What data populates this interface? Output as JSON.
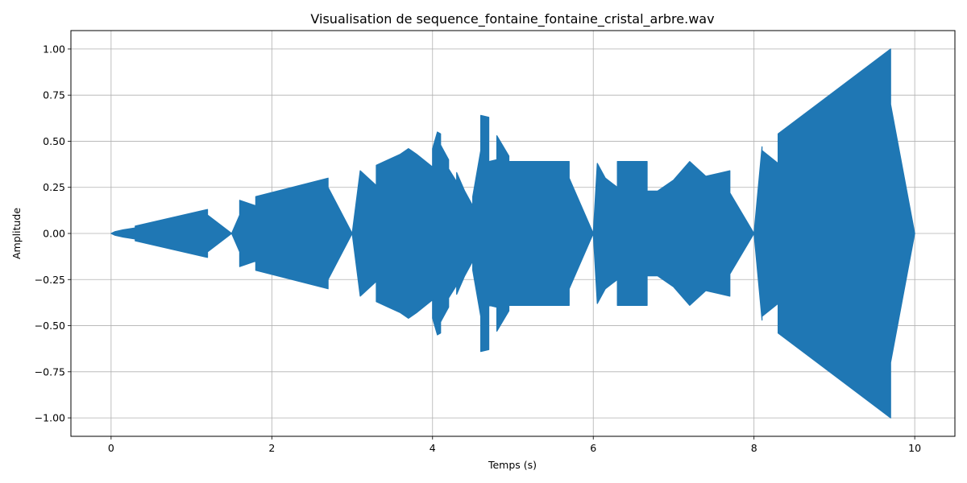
{
  "chart_data": {
    "type": "line",
    "title": "Visualisation de sequence_fontaine_fontaine_cristal_arbre.wav",
    "xlabel": "Temps (s)",
    "ylabel": "Amplitude",
    "xlim": [
      -0.5,
      10.5
    ],
    "ylim": [
      -1.1,
      1.1
    ],
    "xticks": [
      0,
      2,
      4,
      6,
      8,
      10
    ],
    "xtick_labels": [
      "0",
      "2",
      "4",
      "6",
      "8",
      "10"
    ],
    "yticks": [
      1.0,
      0.75,
      0.5,
      0.25,
      0.0,
      -0.25,
      -0.5,
      -0.75,
      -1.0
    ],
    "ytick_labels": [
      "1.00",
      "0.75",
      "0.50",
      "0.25",
      "0.00",
      "−0.25",
      "−0.50",
      "−0.75",
      "−1.00"
    ],
    "grid": true,
    "line_color": "#1f77b4",
    "series": [
      {
        "envelope_time": [
          0.0,
          0.05,
          0.15,
          0.3,
          0.3,
          1.2,
          1.2,
          1.5,
          1.6,
          1.6,
          1.8,
          1.8,
          2.7,
          2.7,
          3.0,
          3.1,
          3.3,
          3.3,
          3.4,
          3.6,
          3.7,
          3.8,
          4.0,
          4.0,
          4.06,
          4.1,
          4.1,
          4.2,
          4.2,
          4.3,
          4.3,
          4.4,
          4.5,
          4.5,
          4.6,
          4.6,
          4.7,
          4.7,
          4.8,
          4.8,
          4.95,
          4.95,
          5.7,
          5.7,
          6.0,
          6.05,
          6.15,
          6.3,
          6.3,
          6.67,
          6.67,
          6.8,
          7.0,
          7.2,
          7.4,
          7.7,
          7.7,
          8.0,
          8.1,
          8.1,
          8.3,
          8.3,
          9.7,
          9.7,
          10.0
        ],
        "envelope_amplitude": [
          0.0,
          0.01,
          0.02,
          0.03,
          0.04,
          0.13,
          0.1,
          0.0,
          0.1,
          0.18,
          0.15,
          0.2,
          0.3,
          0.25,
          0.0,
          0.34,
          0.26,
          0.37,
          0.39,
          0.43,
          0.46,
          0.43,
          0.36,
          0.46,
          0.55,
          0.54,
          0.48,
          0.4,
          0.35,
          0.28,
          0.33,
          0.23,
          0.15,
          0.2,
          0.45,
          0.64,
          0.63,
          0.39,
          0.4,
          0.53,
          0.42,
          0.39,
          0.39,
          0.3,
          0.0,
          0.38,
          0.3,
          0.25,
          0.39,
          0.39,
          0.23,
          0.23,
          0.29,
          0.39,
          0.31,
          0.34,
          0.22,
          0.0,
          0.47,
          0.45,
          0.38,
          0.54,
          1.0,
          0.7,
          0.0
        ]
      }
    ]
  }
}
